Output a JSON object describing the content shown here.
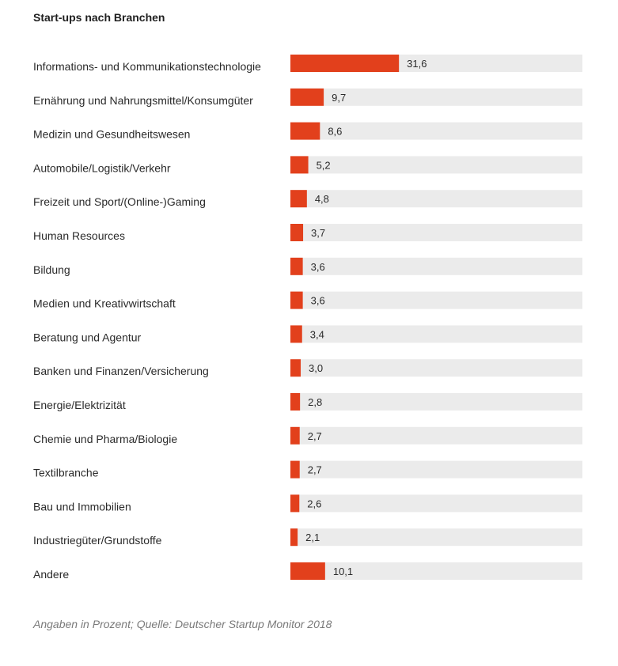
{
  "chart_data": {
    "type": "bar",
    "orientation": "horizontal",
    "title": "Start-ups nach Branchen",
    "categories": [
      "Informations- und Kommunikationstechnologie",
      "Ernährung und Nahrungsmittel/Konsumgüter",
      "Medizin und Gesundheitswesen",
      "Automobile/Logistik/Verkehr",
      "Freizeit und Sport/(Online-)Gaming",
      "Human Resources",
      "Bildung",
      "Medien und Kreativwirtschaft",
      "Beratung und Agentur",
      "Banken und Finanzen/Versicherung",
      "Energie/Elektrizität",
      "Chemie und Pharma/Biologie",
      "Textilbranche",
      "Bau und Immobilien",
      "Industriegüter/Grundstoffe",
      "Andere"
    ],
    "values": [
      31.6,
      9.7,
      8.6,
      5.2,
      4.8,
      3.7,
      3.6,
      3.6,
      3.4,
      3.0,
      2.8,
      2.7,
      2.7,
      2.6,
      2.1,
      10.1
    ],
    "value_labels": [
      "31,6",
      "9,7",
      "8,6",
      "5,2",
      "4,8",
      "3,7",
      "3,6",
      "3,6",
      "3,4",
      "3,0",
      "2,8",
      "2,7",
      "2,7",
      "2,6",
      "2,1",
      "10,1"
    ],
    "xlim": [
      0,
      85
    ],
    "grid": false,
    "legend": "none",
    "colors": {
      "bar": "#e2401c",
      "track": "#ebebeb"
    },
    "source": "Angaben in Prozent; Quelle: Deutscher Startup Monitor 2018"
  }
}
